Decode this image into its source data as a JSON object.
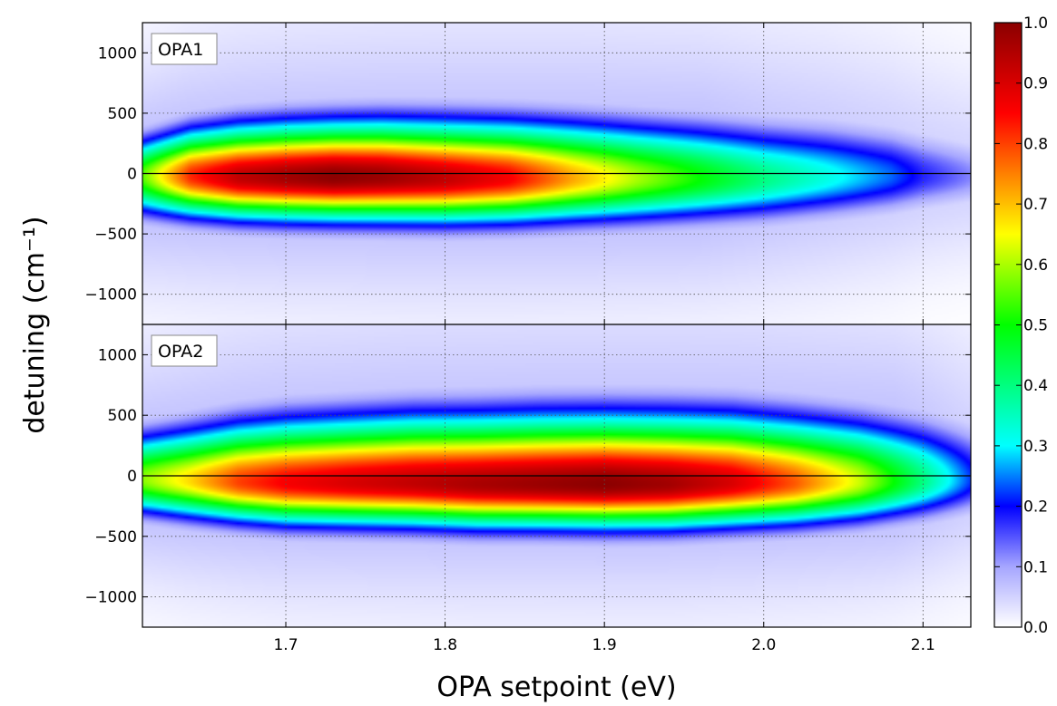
{
  "chart_data": {
    "type": "heatmap",
    "xlabel": "OPA setpoint  (eV)",
    "ylabel": "detuning  (cm⁻¹)",
    "xlim": [
      1.61,
      2.13
    ],
    "ylim": [
      -1250,
      1250
    ],
    "x_ticks": [
      1.7,
      1.8,
      1.9,
      2.0,
      2.1
    ],
    "x_tick_labels": [
      "1.7",
      "1.8",
      "1.9",
      "2.0",
      "2.1"
    ],
    "y_ticks": [
      -1000,
      -500,
      0,
      500,
      1000
    ],
    "y_tick_labels": [
      "−1000",
      "−500",
      "0",
      "500",
      "1000"
    ],
    "grid": true,
    "reference_line_y": 0,
    "colorbar": {
      "range": [
        0.0,
        1.0
      ],
      "ticks": [
        0.0,
        0.1,
        0.2,
        0.3,
        0.4,
        0.5,
        0.6,
        0.7,
        0.8,
        0.9,
        1.0
      ],
      "tick_labels": [
        "0.0",
        "0.1",
        "0.2",
        "0.3",
        "0.4",
        "0.5",
        "0.6",
        "0.7",
        "0.8",
        "0.9",
        "1.0"
      ],
      "colors": [
        "#ffffff",
        "#a6a6ff",
        "#0000ff",
        "#00ffff",
        "#00ff00",
        "#ffff00",
        "#ff8000",
        "#ff0000",
        "#8b0000"
      ],
      "color_positions": [
        0.0,
        0.1,
        0.2,
        0.3,
        0.5,
        0.65,
        0.75,
        0.85,
        1.0
      ]
    },
    "panels": [
      {
        "label": "OPA1",
        "profile": {
          "x": [
            1.61,
            1.64,
            1.67,
            1.7,
            1.73,
            1.76,
            1.8,
            1.84,
            1.88,
            1.92,
            1.96,
            2.0,
            2.04,
            2.08,
            2.1,
            2.13
          ],
          "amplitude": [
            0.55,
            0.82,
            0.93,
            0.97,
            1.0,
            0.98,
            0.93,
            0.86,
            0.72,
            0.6,
            0.5,
            0.4,
            0.32,
            0.24,
            0.18,
            0.12
          ],
          "center": [
            -20,
            -20,
            -30,
            -30,
            -30,
            -30,
            -40,
            -40,
            -40,
            -40,
            -40,
            -40,
            -30,
            -20,
            -20,
            -20
          ],
          "sigma_plus": [
            200,
            240,
            265,
            275,
            280,
            285,
            290,
            290,
            290,
            285,
            280,
            270,
            260,
            235,
            215,
            190
          ],
          "sigma_minus": [
            200,
            210,
            215,
            220,
            222,
            225,
            225,
            225,
            222,
            220,
            215,
            210,
            200,
            185,
            170,
            155
          ]
        }
      },
      {
        "label": "OPA2",
        "profile": {
          "x": [
            1.61,
            1.64,
            1.67,
            1.7,
            1.74,
            1.78,
            1.82,
            1.86,
            1.9,
            1.94,
            1.98,
            2.02,
            2.06,
            2.1,
            2.13
          ],
          "amplitude": [
            0.58,
            0.68,
            0.8,
            0.86,
            0.9,
            0.93,
            0.96,
            0.98,
            1.0,
            0.97,
            0.9,
            0.78,
            0.62,
            0.4,
            0.22
          ],
          "center": [
            -30,
            -40,
            -50,
            -60,
            -60,
            -60,
            -70,
            -70,
            -70,
            -70,
            -60,
            -60,
            -50,
            -40,
            -30
          ],
          "sigma_plus": [
            240,
            270,
            300,
            320,
            330,
            340,
            345,
            350,
            350,
            350,
            345,
            335,
            320,
            300,
            270
          ],
          "sigma_minus": [
            180,
            195,
            205,
            212,
            215,
            218,
            220,
            220,
            222,
            222,
            218,
            212,
            205,
            190,
            175
          ]
        }
      }
    ]
  }
}
